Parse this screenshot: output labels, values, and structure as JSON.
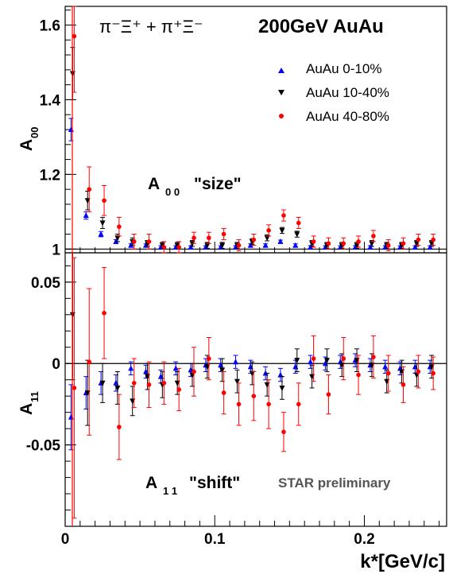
{
  "chart_data": [
    {
      "type": "scatter",
      "title": "π⁻Ξ⁺ + π⁺Ξ⁻   200GeV AuAu",
      "ylabel": "A00",
      "annotation": "A00 \"size\"",
      "xlim": [
        0,
        0.255
      ],
      "ylim": [
        0.99,
        1.65
      ],
      "yticks": [
        1,
        1.2,
        1.4,
        1.6
      ],
      "legend_position": "top-right",
      "x": [
        0.005,
        0.015,
        0.025,
        0.035,
        0.045,
        0.055,
        0.065,
        0.075,
        0.085,
        0.095,
        0.105,
        0.115,
        0.125,
        0.135,
        0.145,
        0.155,
        0.165,
        0.175,
        0.185,
        0.195,
        0.205,
        0.215,
        0.225,
        0.235,
        0.245
      ],
      "series": [
        {
          "name": "AuAu 0-10%",
          "color": "#0000ff",
          "marker": "triangle-up",
          "values": [
            1.32,
            1.09,
            1.04,
            1.02,
            1.01,
            1.01,
            1.005,
            1.005,
            1.005,
            1.005,
            1.005,
            1.005,
            1.01,
            1.01,
            1.02,
            1.01,
            1.005,
            1.005,
            1.005,
            1.005,
            1.005,
            1.005,
            1.005,
            1.005,
            1.005
          ],
          "err": [
            0.03,
            0.01,
            0.007,
            0.005,
            0.004,
            0.004,
            0.004,
            0.004,
            0.004,
            0.004,
            0.004,
            0.004,
            0.004,
            0.004,
            0.004,
            0.004,
            0.004,
            0.004,
            0.004,
            0.004,
            0.004,
            0.004,
            0.004,
            0.004,
            0.004
          ]
        },
        {
          "name": "AuAu 10-40%",
          "color": "#000000",
          "marker": "triangle-down",
          "values": [
            1.47,
            1.13,
            1.07,
            1.03,
            1.02,
            1.015,
            1.01,
            1.01,
            1.015,
            1.01,
            1.01,
            1.01,
            1.02,
            1.03,
            1.05,
            1.04,
            1.015,
            1.01,
            1.01,
            1.01,
            1.015,
            1.01,
            1.01,
            1.015,
            1.015
          ],
          "err": [
            0.07,
            0.025,
            0.015,
            0.01,
            0.01,
            0.008,
            0.008,
            0.008,
            0.008,
            0.008,
            0.008,
            0.008,
            0.008,
            0.008,
            0.008,
            0.008,
            0.008,
            0.008,
            0.008,
            0.008,
            0.008,
            0.008,
            0.008,
            0.008,
            0.008
          ]
        },
        {
          "name": "AuAu 40-80%",
          "color": "#ff0000",
          "marker": "circle",
          "values": [
            1.57,
            1.16,
            1.13,
            1.06,
            1.02,
            1.02,
            1.005,
            1.005,
            1.03,
            1.03,
            1.04,
            1.01,
            1.025,
            1.05,
            1.09,
            1.07,
            1.02,
            1.015,
            1.015,
            1.02,
            1.035,
            1.01,
            1.015,
            1.025,
            1.025
          ],
          "err": [
            0.15,
            0.06,
            0.04,
            0.025,
            0.02,
            0.02,
            0.015,
            0.015,
            0.015,
            0.015,
            0.015,
            0.015,
            0.015,
            0.015,
            0.015,
            0.015,
            0.015,
            0.015,
            0.015,
            0.015,
            0.015,
            0.015,
            0.015,
            0.015,
            0.015
          ]
        }
      ]
    },
    {
      "type": "scatter",
      "ylabel": "A11",
      "xlabel": "k*[GeV/c]",
      "annotation": "A11 \"shift\"",
      "watermark": "STAR preliminary",
      "xlim": [
        0,
        0.255
      ],
      "ylim": [
        -0.1,
        0.068
      ],
      "yticks": [
        -0.05,
        0,
        0.05
      ],
      "xticks": [
        0,
        0.1,
        0.2
      ],
      "x": [
        0.005,
        0.015,
        0.025,
        0.035,
        0.045,
        0.055,
        0.065,
        0.075,
        0.085,
        0.095,
        0.105,
        0.115,
        0.125,
        0.135,
        0.145,
        0.155,
        0.165,
        0.175,
        0.185,
        0.195,
        0.205,
        0.215,
        0.225,
        0.235,
        0.245
      ],
      "series": [
        {
          "name": "AuAu 0-10%",
          "color": "#0000ff",
          "marker": "triangle-up",
          "values": [
            -0.033,
            -0.018,
            -0.012,
            -0.012,
            -0.003,
            -0.005,
            -0.008,
            -0.003,
            -0.004,
            -0.001,
            -0.001,
            0.001,
            -0.002,
            -0.006,
            -0.007,
            -0.002,
            0.001,
            0.0,
            0.001,
            0.002,
            -0.001,
            -0.002,
            -0.003,
            -0.002,
            -0.002
          ],
          "err": [
            0.02,
            0.01,
            0.007,
            0.005,
            0.004,
            0.004,
            0.004,
            0.004,
            0.004,
            0.004,
            0.004,
            0.004,
            0.004,
            0.004,
            0.004,
            0.004,
            0.004,
            0.004,
            0.004,
            0.004,
            0.004,
            0.004,
            0.004,
            0.004,
            0.004
          ]
        },
        {
          "name": "AuAu 10-40%",
          "color": "#000000",
          "marker": "triangle-down",
          "values": [
            0.03,
            -0.018,
            -0.012,
            -0.015,
            -0.023,
            -0.008,
            -0.013,
            -0.012,
            -0.007,
            -0.002,
            -0.004,
            -0.011,
            -0.006,
            -0.013,
            -0.015,
            0.002,
            -0.008,
            0.002,
            -0.001,
            0.002,
            -0.001,
            -0.011,
            -0.005,
            -0.007,
            -0.002
          ],
          "err": [
            0.04,
            0.02,
            0.012,
            0.01,
            0.009,
            0.008,
            0.008,
            0.007,
            0.007,
            0.007,
            0.007,
            0.007,
            0.007,
            0.007,
            0.007,
            0.007,
            0.007,
            0.007,
            0.007,
            0.007,
            0.007,
            0.007,
            0.007,
            0.007,
            0.007
          ]
        },
        {
          "name": "AuAu 40-80%",
          "color": "#ff0000",
          "marker": "circle",
          "values": [
            -0.015,
            0.001,
            0.031,
            -0.039,
            -0.012,
            -0.013,
            -0.012,
            -0.016,
            -0.005,
            0.003,
            -0.018,
            -0.025,
            -0.02,
            -0.025,
            -0.042,
            -0.025,
            0.003,
            -0.019,
            0.003,
            -0.007,
            0.004,
            -0.006,
            -0.013,
            -0.005,
            -0.006
          ],
          "err": [
            0.08,
            0.045,
            0.028,
            0.02,
            0.015,
            0.014,
            0.013,
            0.013,
            0.015,
            0.013,
            0.013,
            0.013,
            0.015,
            0.015,
            0.012,
            0.013,
            0.014,
            0.012,
            0.013,
            0.012,
            0.013,
            0.011,
            0.011,
            0.01,
            0.01
          ]
        }
      ]
    }
  ],
  "labels": {
    "title_left": "π⁻Ξ⁺ + π⁺Ξ⁻",
    "title_right": "200GeV AuAu",
    "ylabel_top": "A",
    "ylabel_top_sub": "00",
    "ylabel_bottom": "A",
    "ylabel_bottom_sub": "11",
    "ann_top_a": "A",
    "ann_top_sub": "0 0",
    "ann_top_text": "\"size\"",
    "ann_bottom_a": "A",
    "ann_bottom_sub": "1 1",
    "ann_bottom_text": "\"shift\"",
    "watermark": "STAR preliminary",
    "xlabel": "k*[GeV/c]",
    "legend": [
      "AuAu 0-10%",
      "AuAu 10-40%",
      "AuAu 40-80%"
    ]
  }
}
